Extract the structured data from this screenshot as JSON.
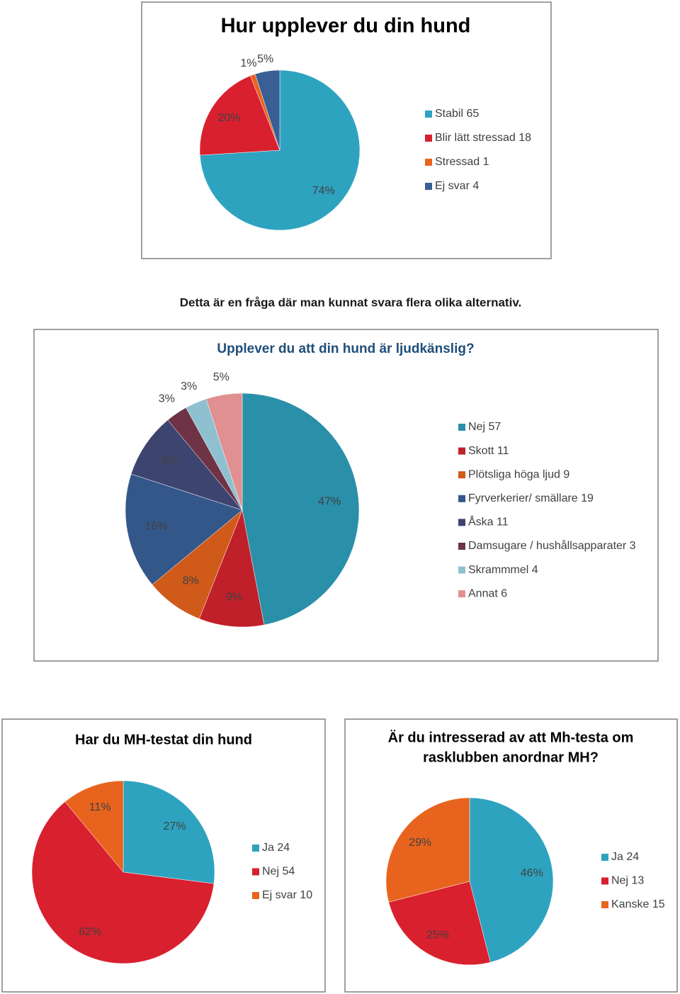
{
  "caption": "Detta är en fråga där man kunnat svara flera olika alternativ.",
  "chart_data": [
    {
      "type": "pie",
      "title": [
        "Hur upplever du din hund"
      ],
      "categories": [
        "Stabil 65",
        "Blir lätt stressad 18",
        "Stressad 1",
        "Ej svar 4"
      ],
      "values": [
        74,
        20,
        1,
        5
      ],
      "value_labels": [
        "74%",
        "20%",
        "1%",
        "5%"
      ],
      "colors": [
        "#2ea3c0",
        "#d9202e",
        "#e8641e",
        "#3a5f95"
      ]
    },
    {
      "type": "pie",
      "title": [
        "Upplever du att din hund är ljudkänslig?"
      ],
      "categories": [
        "Nej 57",
        "Skott 11",
        "Plötsliga höga ljud 9",
        "Fyrverkerier/ smällare 19",
        "Åska 11",
        "Damsugare / hushållsapparater 3",
        "Skrammmel 4",
        "Annat 6"
      ],
      "values": [
        47,
        9,
        8,
        16,
        9,
        3,
        3,
        5
      ],
      "value_labels": [
        "47%",
        "9%",
        "8%",
        "16%",
        "9%",
        "3%",
        "3%",
        "5%"
      ],
      "colors": [
        "#2a8fa8",
        "#c0202a",
        "#d05a1a",
        "#34578a",
        "#3e4470",
        "#6e3345",
        "#8fc0d0",
        "#e09090"
      ]
    },
    {
      "type": "pie",
      "title": [
        "Har du MH-testat din hund"
      ],
      "categories": [
        "Ja  24",
        "Nej 54",
        "Ej svar 10"
      ],
      "values": [
        27,
        62,
        11
      ],
      "value_labels": [
        "27%",
        "62%",
        "11%"
      ],
      "colors": [
        "#2ea3c0",
        "#d9202e",
        "#e8641e"
      ]
    },
    {
      "type": "pie",
      "title": [
        "Är du intresserad av att Mh-testa om",
        "rasklubben anordnar MH?"
      ],
      "categories": [
        "Ja 24",
        "Nej 13",
        "Kanske 15"
      ],
      "values": [
        46,
        25,
        29
      ],
      "value_labels": [
        "46%",
        "25%",
        "29%"
      ],
      "colors": [
        "#2ea3c0",
        "#d9202e",
        "#e8641e"
      ]
    }
  ]
}
